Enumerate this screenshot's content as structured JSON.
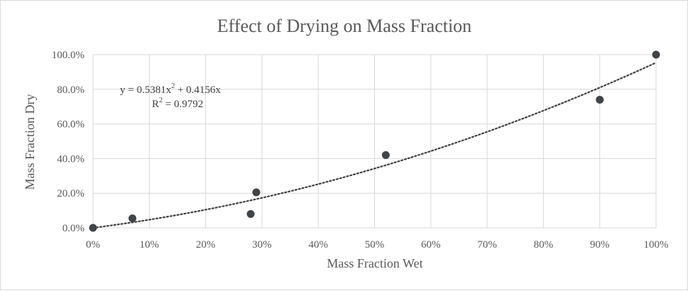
{
  "chart_data": {
    "type": "scatter",
    "title": "Effect of Drying on Mass Fraction",
    "xlabel": "Mass Fraction Wet",
    "ylabel": "Mass Fraction Dry",
    "xlim": [
      0,
      1
    ],
    "ylim": [
      0,
      1
    ],
    "x_ticks": [
      "0%",
      "10%",
      "20%",
      "30%",
      "40%",
      "50%",
      "60%",
      "70%",
      "80%",
      "90%",
      "100%"
    ],
    "y_ticks": [
      "0.0%",
      "20.0%",
      "40.0%",
      "60.0%",
      "80.0%",
      "100.0%"
    ],
    "grid": true,
    "legend": "none",
    "marker_color": "#3f4448",
    "trendline_color": "#404040",
    "series": [
      {
        "points": [
          {
            "x": 0.0,
            "y": 0.0
          },
          {
            "x": 0.07,
            "y": 0.055
          },
          {
            "x": 0.28,
            "y": 0.08
          },
          {
            "x": 0.29,
            "y": 0.205
          },
          {
            "x": 0.52,
            "y": 0.42
          },
          {
            "x": 0.9,
            "y": 0.74
          },
          {
            "x": 1.0,
            "y": 1.0
          }
        ]
      }
    ],
    "trendline": {
      "type": "polynomial",
      "order": 2,
      "coefficients": {
        "a": 0.5381,
        "b": 0.4156,
        "c": 0
      },
      "equation_prefix": "y = 0.5381x",
      "equation_exponent": "2",
      "equation_suffix": " + 0.4156x",
      "r_squared_prefix": "R",
      "r_squared_exponent": "2",
      "r_squared_suffix": " = 0.9792"
    }
  }
}
